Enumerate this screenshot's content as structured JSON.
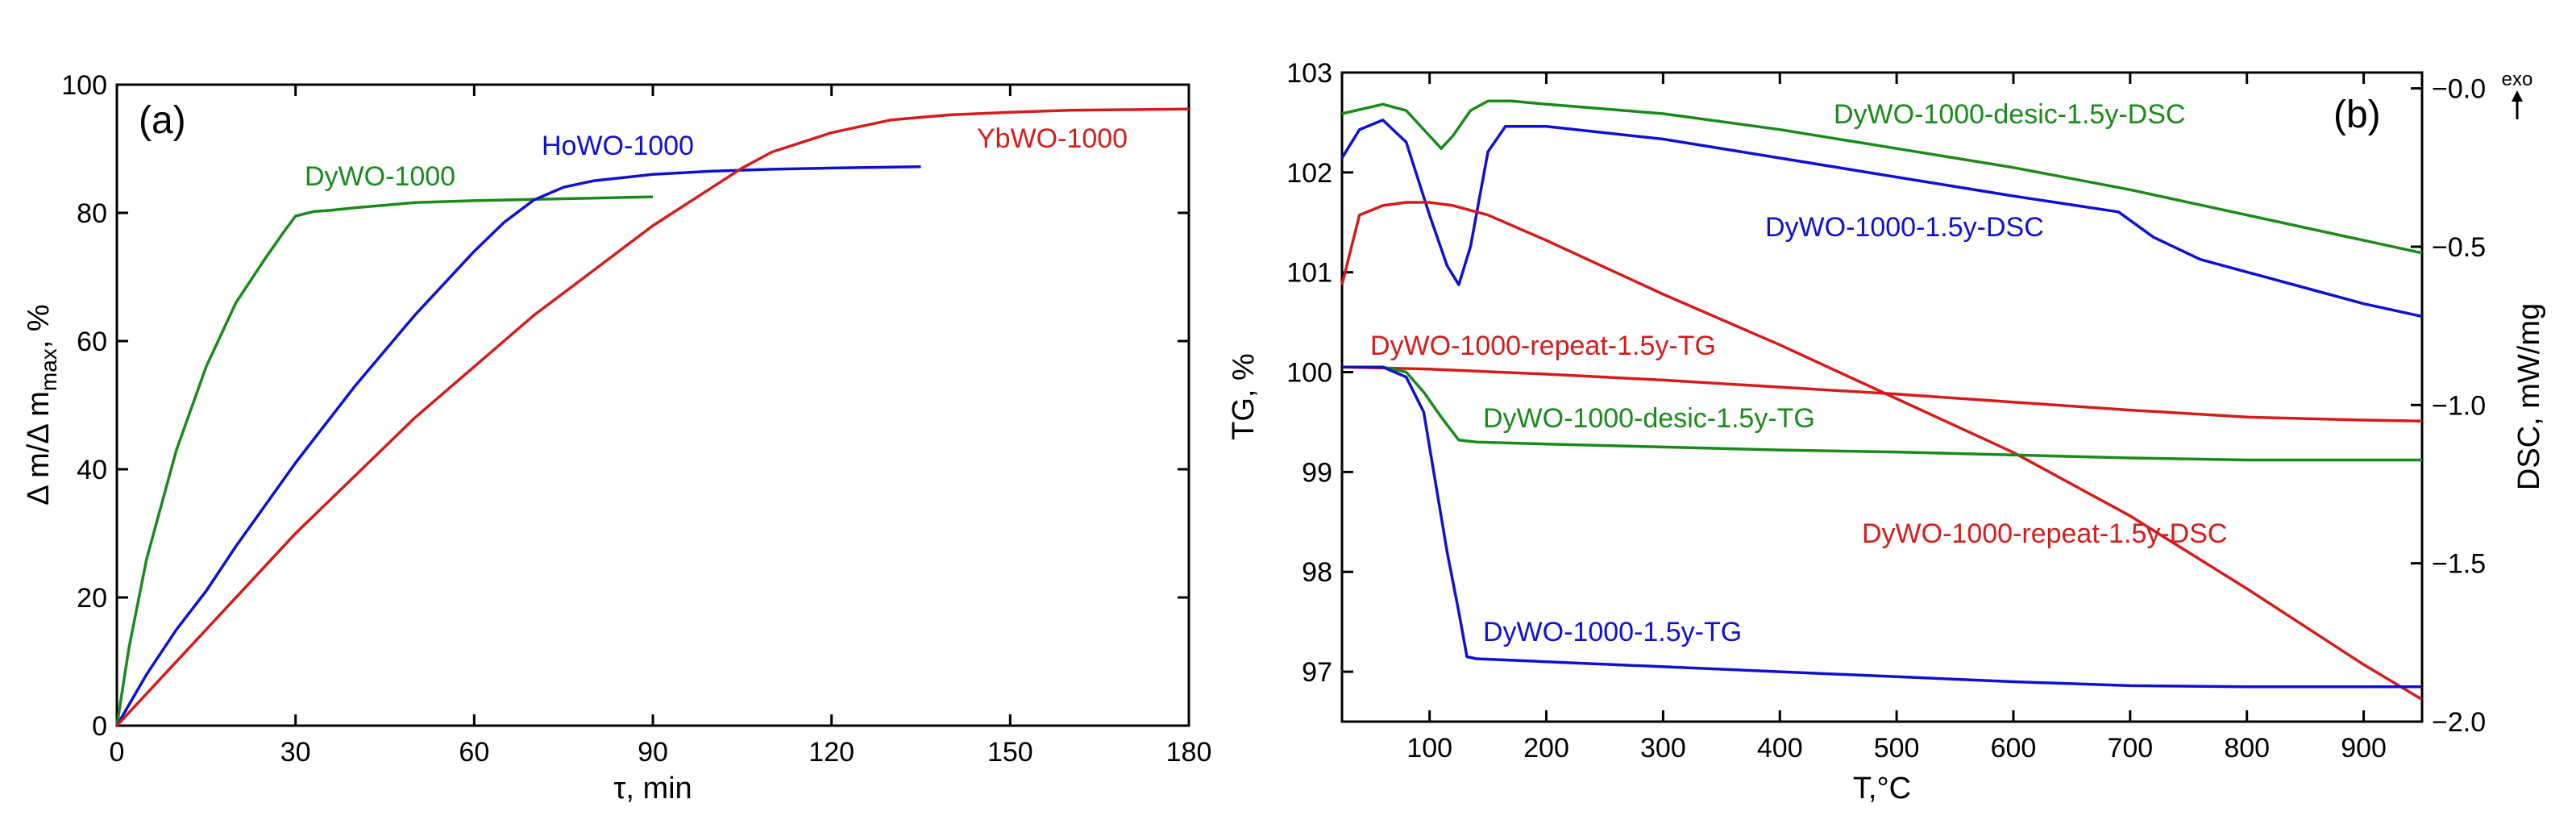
{
  "chart_data": [
    {
      "panel": "(a)",
      "type": "line",
      "xlabel": "τ, min",
      "ylabel": "Δ m/Δ m",
      "ylabel_sub": "max",
      "ylabel_tail": ", %",
      "xlim": [
        0,
        180
      ],
      "ylim": [
        0,
        100
      ],
      "xticks": [
        0,
        30,
        60,
        90,
        120,
        150,
        180
      ],
      "yticks": [
        0,
        20,
        40,
        60,
        80,
        100
      ],
      "grid": false,
      "series": [
        {
          "name": "DyWO-1000",
          "color": "#1a8a1a",
          "x": [
            0,
            2,
            5,
            10,
            15,
            20,
            25,
            28,
            30,
            33,
            36,
            40,
            45,
            50,
            60,
            70,
            80,
            90
          ],
          "y": [
            0,
            12,
            26,
            43,
            56,
            66,
            73,
            77,
            79.5,
            80.2,
            80.4,
            80.8,
            81.2,
            81.6,
            81.9,
            82.1,
            82.3,
            82.5
          ]
        },
        {
          "name": "HoWO-1000",
          "color": "#1010d0",
          "x": [
            0,
            5,
            10,
            15,
            20,
            30,
            40,
            50,
            60,
            65,
            70,
            75,
            80,
            90,
            100,
            110,
            120,
            135
          ],
          "y": [
            0,
            8,
            15,
            21,
            28,
            41,
            53,
            64,
            74,
            78.5,
            82,
            84,
            85,
            86,
            86.5,
            86.8,
            87,
            87.2
          ]
        },
        {
          "name": "YbWO-1000",
          "color": "#d41c1c",
          "x": [
            0,
            10,
            20,
            30,
            40,
            50,
            60,
            70,
            80,
            90,
            100,
            105,
            110,
            120,
            130,
            140,
            150,
            160,
            170,
            180
          ],
          "y": [
            0,
            10,
            20,
            30,
            39,
            48,
            56,
            64,
            71,
            78,
            84,
            87,
            89.5,
            92.5,
            94.5,
            95.3,
            95.7,
            96,
            96.1,
            96.2
          ]
        }
      ]
    },
    {
      "panel": "(b)",
      "type": "line",
      "xlabel": "T,°C",
      "ylabel_left": "TG, %",
      "ylabel_right": "DSC, mW/mg",
      "exo_label": "exo",
      "xlim": [
        25,
        950
      ],
      "ylim_left": [
        96.5,
        103
      ],
      "ylim_right": [
        -2.0,
        0.05
      ],
      "xticks": [
        100,
        200,
        300,
        400,
        500,
        600,
        700,
        800,
        900
      ],
      "yticks_left": [
        97,
        98,
        99,
        100,
        101,
        102,
        103
      ],
      "yticks_right": [
        -2.0,
        -1.5,
        -1.0,
        -0.5,
        -0.0
      ],
      "yticklabels_right": [
        "−2.0",
        "−1.5",
        "−1.0",
        "−0.5",
        "−0.0"
      ],
      "grid": false,
      "series": [
        {
          "name": "DyWO-1000-desic-1.5y-DSC",
          "axis": "right",
          "color": "#1a8a1a",
          "x": [
            25,
            60,
            80,
            100,
            110,
            120,
            135,
            150,
            170,
            200,
            300,
            400,
            500,
            600,
            700,
            800,
            900,
            950
          ],
          "y": [
            -0.08,
            -0.05,
            -0.07,
            -0.15,
            -0.19,
            -0.15,
            -0.07,
            -0.04,
            -0.04,
            -0.05,
            -0.08,
            -0.13,
            -0.19,
            -0.25,
            -0.32,
            -0.4,
            -0.48,
            -0.52
          ]
        },
        {
          "name": "DyWO-1000-1.5y-DSC",
          "axis": "right",
          "color": "#1010d0",
          "x": [
            25,
            40,
            60,
            80,
            100,
            115,
            125,
            135,
            150,
            165,
            200,
            300,
            400,
            500,
            600,
            690,
            720,
            760,
            800,
            850,
            900,
            950
          ],
          "y": [
            -0.22,
            -0.13,
            -0.1,
            -0.17,
            -0.4,
            -0.56,
            -0.62,
            -0.5,
            -0.2,
            -0.12,
            -0.12,
            -0.16,
            -0.22,
            -0.28,
            -0.34,
            -0.39,
            -0.47,
            -0.54,
            -0.58,
            -0.63,
            -0.68,
            -0.72
          ]
        },
        {
          "name": "DyWO-1000-repeat-1.5y-TG",
          "axis": "left",
          "color": "#d41c1c",
          "x": [
            25,
            100,
            200,
            300,
            400,
            500,
            600,
            700,
            800,
            900,
            950
          ],
          "y": [
            100.05,
            100.03,
            99.98,
            99.92,
            99.85,
            99.78,
            99.7,
            99.62,
            99.55,
            99.52,
            99.51
          ]
        },
        {
          "name": "DyWO-1000-repeat-1.5y-DSC",
          "axis": "right",
          "color": "#d41c1c",
          "x": [
            25,
            40,
            60,
            80,
            100,
            120,
            150,
            200,
            300,
            400,
            500,
            600,
            700,
            800,
            900,
            950
          ],
          "y": [
            -0.62,
            -0.4,
            -0.37,
            -0.36,
            -0.36,
            -0.37,
            -0.4,
            -0.48,
            -0.65,
            -0.81,
            -0.98,
            -1.15,
            -1.35,
            -1.58,
            -1.82,
            -1.93
          ]
        },
        {
          "name": "DyWO-1000-desic-1.5y-TG",
          "axis": "left",
          "color": "#1a8a1a",
          "x": [
            25,
            60,
            80,
            95,
            110,
            125,
            140,
            200,
            300,
            400,
            500,
            600,
            700,
            800,
            900,
            950
          ],
          "y": [
            100.05,
            100.05,
            100.0,
            99.8,
            99.55,
            99.32,
            99.3,
            99.28,
            99.25,
            99.22,
            99.2,
            99.17,
            99.14,
            99.12,
            99.12,
            99.12
          ]
        },
        {
          "name": "DyWO-1000-1.5y-TG",
          "axis": "left",
          "color": "#1010d0",
          "x": [
            25,
            60,
            80,
            95,
            105,
            115,
            125,
            132,
            140,
            200,
            300,
            400,
            500,
            600,
            700,
            800,
            900,
            950
          ],
          "y": [
            100.05,
            100.05,
            99.95,
            99.6,
            98.9,
            98.2,
            97.6,
            97.15,
            97.13,
            97.1,
            97.05,
            97.0,
            96.95,
            96.9,
            96.86,
            96.85,
            96.85,
            96.85
          ]
        }
      ]
    }
  ]
}
